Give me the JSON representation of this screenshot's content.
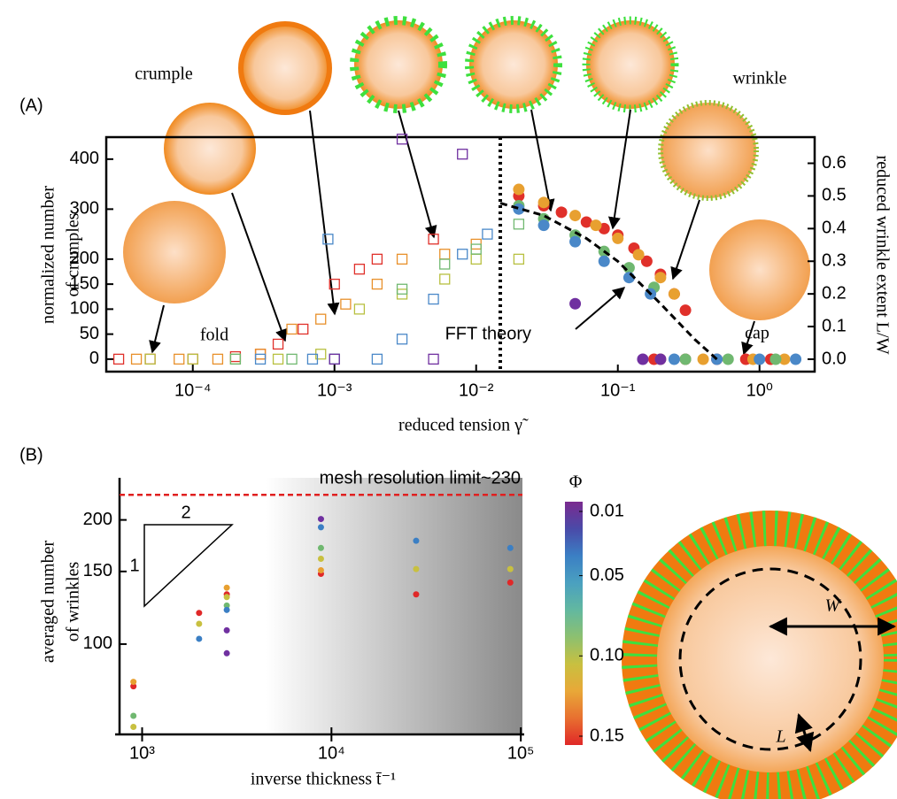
{
  "chart_data": [
    {
      "type": "scatter",
      "panel": "(A)",
      "xlabel": "reduced tension γ̃",
      "ylabel": [
        "normalized number",
        "of crumples"
      ],
      "y2label": "reduced wrinkle extent L/W",
      "annotations": [
        "crumple",
        "wrinkle",
        "fold",
        "cap"
      ],
      "log_x": true,
      "xlim": [
        2.45e-05,
        2.45
      ],
      "xticks": [
        {
          "value": 0.0001,
          "label": "10⁻⁴"
        },
        {
          "value": 0.001,
          "label": "10⁻³"
        },
        {
          "value": 0.01,
          "label": "10⁻²"
        },
        {
          "value": 0.1,
          "label": "10⁻¹"
        },
        {
          "value": 1,
          "label": "10⁰"
        }
      ],
      "ylim": [
        -25,
        444
      ],
      "yticks": [
        0,
        50,
        100,
        150,
        200,
        300,
        400
      ],
      "y2lim": [
        -0.038,
        0.68
      ],
      "y2ticks": [
        {
          "value": 0,
          "label": "0.0"
        },
        0.1,
        0.2,
        0.3,
        0.4,
        0.5,
        0.6
      ],
      "vline": 0.0148,
      "theory": {
        "name": "FFT theory",
        "color": "#000000",
        "axis": "y2",
        "x": [
          0.0148,
          0.03,
          0.06,
          0.1,
          0.2,
          0.35,
          0.5
        ],
        "values": [
          0.478,
          0.44,
          0.37,
          0.3,
          0.17,
          0.06,
          0
        ]
      },
      "series": [
        {
          "marker": "square",
          "color": "#e0302a",
          "x": [
            3e-05,
            5e-05,
            0.0001,
            0.0002,
            0.0003,
            0.0004,
            0.0006,
            0.001,
            0.0015,
            0.002,
            0.005
          ],
          "values": [
            0,
            0,
            0,
            5,
            10,
            30,
            60,
            150,
            180,
            200,
            240
          ]
        },
        {
          "marker": "square",
          "color": "#e8902a",
          "x": [
            4e-05,
            8e-05,
            0.00015,
            0.0003,
            0.0005,
            0.0008,
            0.0012,
            0.002,
            0.003,
            0.006,
            0.01
          ],
          "values": [
            0,
            0,
            0,
            10,
            60,
            80,
            110,
            150,
            200,
            210,
            230
          ]
        },
        {
          "marker": "square",
          "color": "#b8c040",
          "x": [
            5e-05,
            0.0001,
            0.0002,
            0.0004,
            0.0008,
            0.0015,
            0.003,
            0.006,
            0.01,
            0.02
          ],
          "values": [
            0,
            0,
            0,
            0,
            10,
            100,
            130,
            160,
            200,
            200
          ]
        },
        {
          "marker": "square",
          "color": "#70b870",
          "x": [
            0.0002,
            0.0005,
            0.001,
            0.003,
            0.006,
            0.01,
            0.02
          ],
          "values": [
            0,
            0,
            0,
            140,
            190,
            220,
            270
          ]
        },
        {
          "marker": "square",
          "color": "#4a88c8",
          "x": [
            0.0003,
            0.0007,
            0.0009,
            0.001,
            0.002,
            0.003,
            0.005,
            0.008,
            0.012
          ],
          "values": [
            0,
            0,
            240,
            0,
            0,
            40,
            120,
            210,
            250
          ]
        },
        {
          "marker": "square",
          "color": "#7030a0",
          "x": [
            0.001,
            0.003,
            0.005,
            0.008
          ],
          "values": [
            0,
            440,
            0,
            410
          ]
        },
        {
          "marker": "circle",
          "axis": "y2",
          "color": "#e0302a",
          "x": [
            0.02,
            0.03,
            0.04,
            0.06,
            0.08,
            0.1,
            0.13,
            0.16,
            0.2,
            0.25,
            0.3,
            0.18,
            0.3,
            0.5,
            0.8,
            1.2
          ],
          "values": [
            0.5,
            0.47,
            0.45,
            0.42,
            0.4,
            0.38,
            0.34,
            0.3,
            0.26,
            0.2,
            0.15,
            0,
            0,
            0,
            0,
            0
          ]
        },
        {
          "marker": "circle",
          "axis": "y2",
          "color": "#e8a030",
          "x": [
            0.02,
            0.03,
            0.05,
            0.07,
            0.1,
            0.14,
            0.2,
            0.25,
            0.2,
            0.4,
            0.9,
            1.5
          ],
          "values": [
            0.52,
            0.48,
            0.44,
            0.41,
            0.37,
            0.32,
            0.25,
            0.2,
            0,
            0,
            0,
            0
          ]
        },
        {
          "marker": "circle",
          "axis": "y2",
          "color": "#70b870",
          "x": [
            0.02,
            0.03,
            0.05,
            0.08,
            0.12,
            0.18,
            0.3,
            0.6,
            1.3
          ],
          "values": [
            0.47,
            0.43,
            0.38,
            0.33,
            0.28,
            0.22,
            0,
            0,
            0
          ]
        },
        {
          "marker": "circle",
          "axis": "y2",
          "color": "#4a88c8",
          "x": [
            0.02,
            0.03,
            0.05,
            0.08,
            0.12,
            0.17,
            0.25,
            0.5,
            1.0,
            1.8
          ],
          "values": [
            0.46,
            0.41,
            0.36,
            0.3,
            0.25,
            0.2,
            0,
            0,
            0,
            0
          ]
        },
        {
          "marker": "circle",
          "axis": "y2",
          "color": "#7030a0",
          "x": [
            0.05,
            0.15,
            0.2
          ],
          "values": [
            0.17,
            0,
            0
          ]
        }
      ]
    },
    {
      "type": "scatter",
      "panel": "(B)",
      "xlabel": "inverse thickness t̄⁻¹",
      "ylabel": [
        "averaged number",
        "of wrinkles"
      ],
      "slope_labels": [
        "2",
        "1"
      ],
      "log_x": true,
      "log_y": true,
      "xlim": [
        760,
        102000
      ],
      "xticks": [
        {
          "value": 1000,
          "label": "10³"
        },
        {
          "value": 10000,
          "label": "10⁴"
        },
        {
          "value": 100000,
          "label": "10⁵"
        }
      ],
      "ylim": [
        60.4,
        253
      ],
      "yticks": [
        100,
        150,
        200
      ],
      "hline": 230,
      "hline_label": "mesh resolution limit~230",
      "hline_color": "#e02020",
      "series": [
        {
          "color": "#e02828",
          "x": [
            900,
            2000,
            2800,
            8800,
            28000,
            88000
          ],
          "values": [
            79,
            119,
            132,
            148,
            132,
            141
          ]
        },
        {
          "color": "#e8a030",
          "x": [
            900,
            2800,
            8800
          ],
          "values": [
            81,
            137,
            151
          ]
        },
        {
          "color": "#c8c040",
          "x": [
            900,
            2000,
            2800,
            8800,
            28000,
            88000
          ],
          "values": [
            63,
            112,
            130,
            161,
            152,
            152
          ]
        },
        {
          "color": "#70b870",
          "x": [
            900,
            2800,
            8800
          ],
          "values": [
            67,
            124,
            171
          ]
        },
        {
          "color": "#3b7fc4",
          "x": [
            2000,
            2800,
            8800,
            28000,
            88000
          ],
          "values": [
            103,
            121,
            192,
            178,
            171
          ]
        },
        {
          "color": "#7030a0",
          "x": [
            2800,
            2800,
            8800
          ],
          "values": [
            95,
            108,
            201
          ]
        }
      ],
      "colorbar": {
        "label": "Φ",
        "lim": [
          0.01,
          0.15
        ],
        "ticks": [
          0.01,
          0.05,
          {
            "value": 0.1,
            "label": "0.10"
          },
          0.15
        ],
        "colors": [
          "#7b2a8f",
          "#4a4aa8",
          "#3b7fc4",
          "#4aa0c0",
          "#62b8a0",
          "#8cc070",
          "#c8c040",
          "#e8a838",
          "#e87030",
          "#e02828"
        ]
      }
    }
  ],
  "diagram": {
    "width_label": "W",
    "extent_label": "L"
  }
}
